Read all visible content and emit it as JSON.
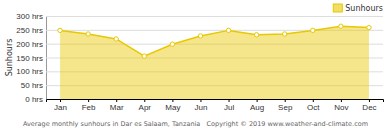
{
  "chart_data": {
    "type": "area",
    "ylabel": "Sunhours",
    "caption": "Average monthly sunhours in Dar es Salaam, Tanzania   Copyright © 2019 www.weather-and-climate.com",
    "categories": [
      "Jan",
      "Feb",
      "Mar",
      "Apr",
      "May",
      "Jun",
      "Jul",
      "Aug",
      "Sep",
      "Oct",
      "Nov",
      "Dec"
    ],
    "series": [
      {
        "name": "Sunhours",
        "color": "#e8c800",
        "marker": "circle",
        "values": [
          248,
          235,
          217,
          155,
          198,
          228,
          248,
          232,
          235,
          248,
          263,
          258
        ]
      }
    ],
    "ylim": [
      0,
      300
    ],
    "yticks": [
      {
        "value": 0,
        "label": "0 hrs"
      },
      {
        "value": 50,
        "label": "50 hrs"
      },
      {
        "value": 100,
        "label": "100 hrs"
      },
      {
        "value": 150,
        "label": "150 hrs"
      },
      {
        "value": 200,
        "label": "200 hrs"
      },
      {
        "value": 250,
        "label": "250 hrs"
      },
      {
        "value": 300,
        "label": "300 hrs"
      }
    ],
    "grid": true,
    "legend": "upper right"
  }
}
